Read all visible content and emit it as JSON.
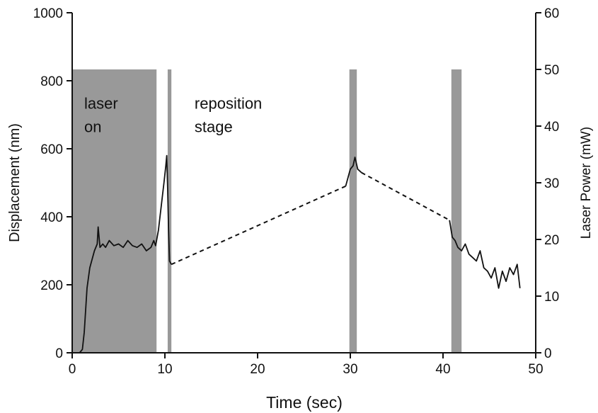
{
  "chart_data": {
    "type": "line",
    "xlabel": "Time (sec)",
    "ylabel": "Displacement (nm)",
    "y2label": "Laser Power (mW)",
    "xlim": [
      0,
      50
    ],
    "ylim": [
      0,
      1000
    ],
    "y2lim": [
      0,
      60
    ],
    "xticks": [
      0,
      10,
      20,
      30,
      40,
      50
    ],
    "yticks": [
      0,
      200,
      400,
      600,
      800,
      1000
    ],
    "y2ticks": [
      0,
      10,
      20,
      30,
      40,
      50,
      60
    ],
    "grid": false,
    "colors": {
      "trace": "#111111",
      "laser_band": "#999999",
      "axis": "#111111"
    },
    "laser_on_intervals": [
      {
        "x0": 0,
        "x1": 9.1,
        "power": 50
      },
      {
        "x0": 10.3,
        "x1": 10.7,
        "power": 50
      },
      {
        "x0": 29.9,
        "x1": 30.7,
        "power": 50
      },
      {
        "x0": 40.9,
        "x1": 42.0,
        "power": 50
      }
    ],
    "annotations": [
      {
        "lines": [
          "laser",
          "on"
        ],
        "x": 1.3,
        "y": 770
      },
      {
        "lines": [
          "reposition",
          "stage"
        ],
        "x": 13.2,
        "y": 770
      }
    ],
    "series": [
      {
        "style": "solid",
        "x": [
          0,
          0.8,
          1.1,
          1.3,
          1.6,
          1.9,
          2.1,
          2.4,
          2.7,
          2.8,
          3.0,
          3.3,
          3.6,
          4.0,
          4.5,
          5.0,
          5.5,
          6.0,
          6.5,
          7.0,
          7.5,
          8.0,
          8.5,
          8.8,
          9.0,
          9.3,
          9.6,
          9.9,
          10.1,
          10.2,
          10.3,
          10.4,
          10.5,
          10.6,
          10.7
        ],
        "y": [
          0,
          0,
          10,
          60,
          190,
          250,
          270,
          300,
          320,
          370,
          310,
          320,
          310,
          330,
          315,
          320,
          310,
          330,
          315,
          310,
          320,
          300,
          310,
          330,
          315,
          360,
          430,
          500,
          550,
          580,
          480,
          360,
          270,
          265,
          260
        ]
      },
      {
        "style": "dashed",
        "x": [
          10.7,
          29.5
        ],
        "y": [
          260,
          490
        ]
      },
      {
        "style": "solid",
        "x": [
          29.5,
          29.8,
          30.0,
          30.3,
          30.5,
          30.8,
          31.0,
          31.2
        ],
        "y": [
          490,
          520,
          540,
          550,
          575,
          540,
          535,
          530
        ]
      },
      {
        "style": "dashed",
        "x": [
          31.2,
          40.7
        ],
        "y": [
          530,
          390
        ]
      },
      {
        "style": "solid",
        "x": [
          40.7,
          41.0,
          41.3,
          41.6,
          42.0,
          42.4,
          42.8,
          43.2,
          43.6,
          44.0,
          44.4,
          44.8,
          45.2,
          45.6,
          46.0,
          46.4,
          46.8,
          47.2,
          47.6,
          48.0,
          48.3
        ],
        "y": [
          390,
          340,
          330,
          310,
          300,
          320,
          290,
          280,
          270,
          300,
          250,
          240,
          220,
          250,
          190,
          240,
          210,
          250,
          230,
          260,
          190
        ]
      }
    ]
  }
}
